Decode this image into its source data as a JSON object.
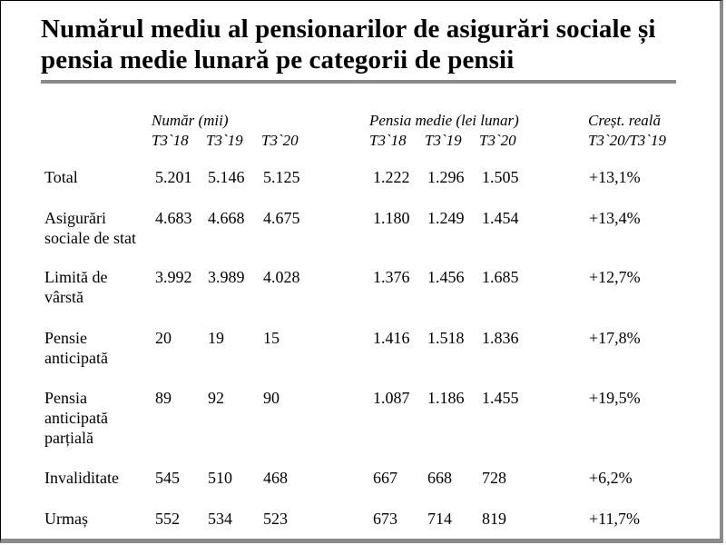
{
  "title": {
    "line1": "Numărul mediu al pensionarilor de asigurări sociale și",
    "line2": "pensia medie lunară pe categorii de pensii"
  },
  "headers": {
    "group_numar": "Număr (mii)",
    "group_pensia": "Pensia medie (lei lunar)",
    "group_crest": "Creșt. reală",
    "periods": [
      "T3`18",
      "T3`19",
      "T3`20"
    ],
    "crest_period": "T3`20/T3`19"
  },
  "rows": [
    {
      "label": [
        "Total"
      ],
      "numar": [
        "5.201",
        "5.146",
        "5.125"
      ],
      "pensia": [
        "1.222",
        "1.296",
        "1.505"
      ],
      "crest": "+13,1%"
    },
    {
      "label": [
        "Asigurări",
        "sociale de stat"
      ],
      "numar": [
        "4.683",
        "4.668",
        "4.675"
      ],
      "pensia": [
        "1.180",
        "1.249",
        "1.454"
      ],
      "crest": "+13,4%"
    },
    {
      "label": [
        "Limită de",
        "vârstă"
      ],
      "numar": [
        "3.992",
        "3.989",
        "4.028"
      ],
      "pensia": [
        "1.376",
        "1.456",
        "1.685"
      ],
      "crest": "+12,7%"
    },
    {
      "label": [
        "Pensie",
        "anticipată"
      ],
      "numar": [
        "20",
        "19",
        "15"
      ],
      "pensia": [
        "1.416",
        "1.518",
        "1.836"
      ],
      "crest": "+17,8%"
    },
    {
      "label": [
        "Pensia",
        "anticipată",
        "parțială"
      ],
      "numar": [
        "89",
        "92",
        "90"
      ],
      "pensia": [
        "1.087",
        "1.186",
        "1.455"
      ],
      "crest": "+19,5%"
    },
    {
      "label": [
        "Invaliditate"
      ],
      "numar": [
        "545",
        "510",
        "468"
      ],
      "pensia": [
        "667",
        "668",
        "728"
      ],
      "crest": "+6,2%"
    },
    {
      "label": [
        "Urmaș"
      ],
      "numar": [
        "552",
        "534",
        "523"
      ],
      "pensia": [
        "673",
        "714",
        "819"
      ],
      "crest": "+11,7%"
    }
  ]
}
